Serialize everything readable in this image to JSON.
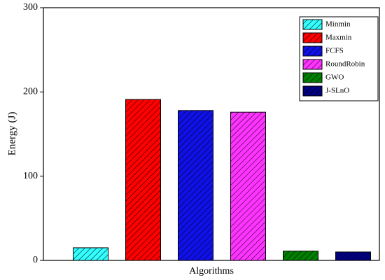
{
  "chart_data": {
    "type": "bar",
    "x_label": "Algorithms",
    "y_label": "Energy (J)",
    "series": [
      {
        "name": "Minmin",
        "color": "#33ffff",
        "values": [
          15
        ]
      },
      {
        "name": "Maxmin",
        "color": "#ff0000",
        "values": [
          191
        ]
      },
      {
        "name": "FCFS",
        "color": "#1010e8",
        "values": [
          178
        ]
      },
      {
        "name": "RoundRobin",
        "color": "#ff33ff",
        "values": [
          176
        ]
      },
      {
        "name": "GWO",
        "color": "#008000",
        "values": [
          11
        ]
      },
      {
        "name": "J-SLnO",
        "color": "#000080",
        "values": [
          10
        ]
      }
    ],
    "ylim": [
      0,
      300
    ],
    "yticks": [
      0,
      100,
      200,
      300
    ],
    "hatch": true,
    "legend": "upper right"
  }
}
